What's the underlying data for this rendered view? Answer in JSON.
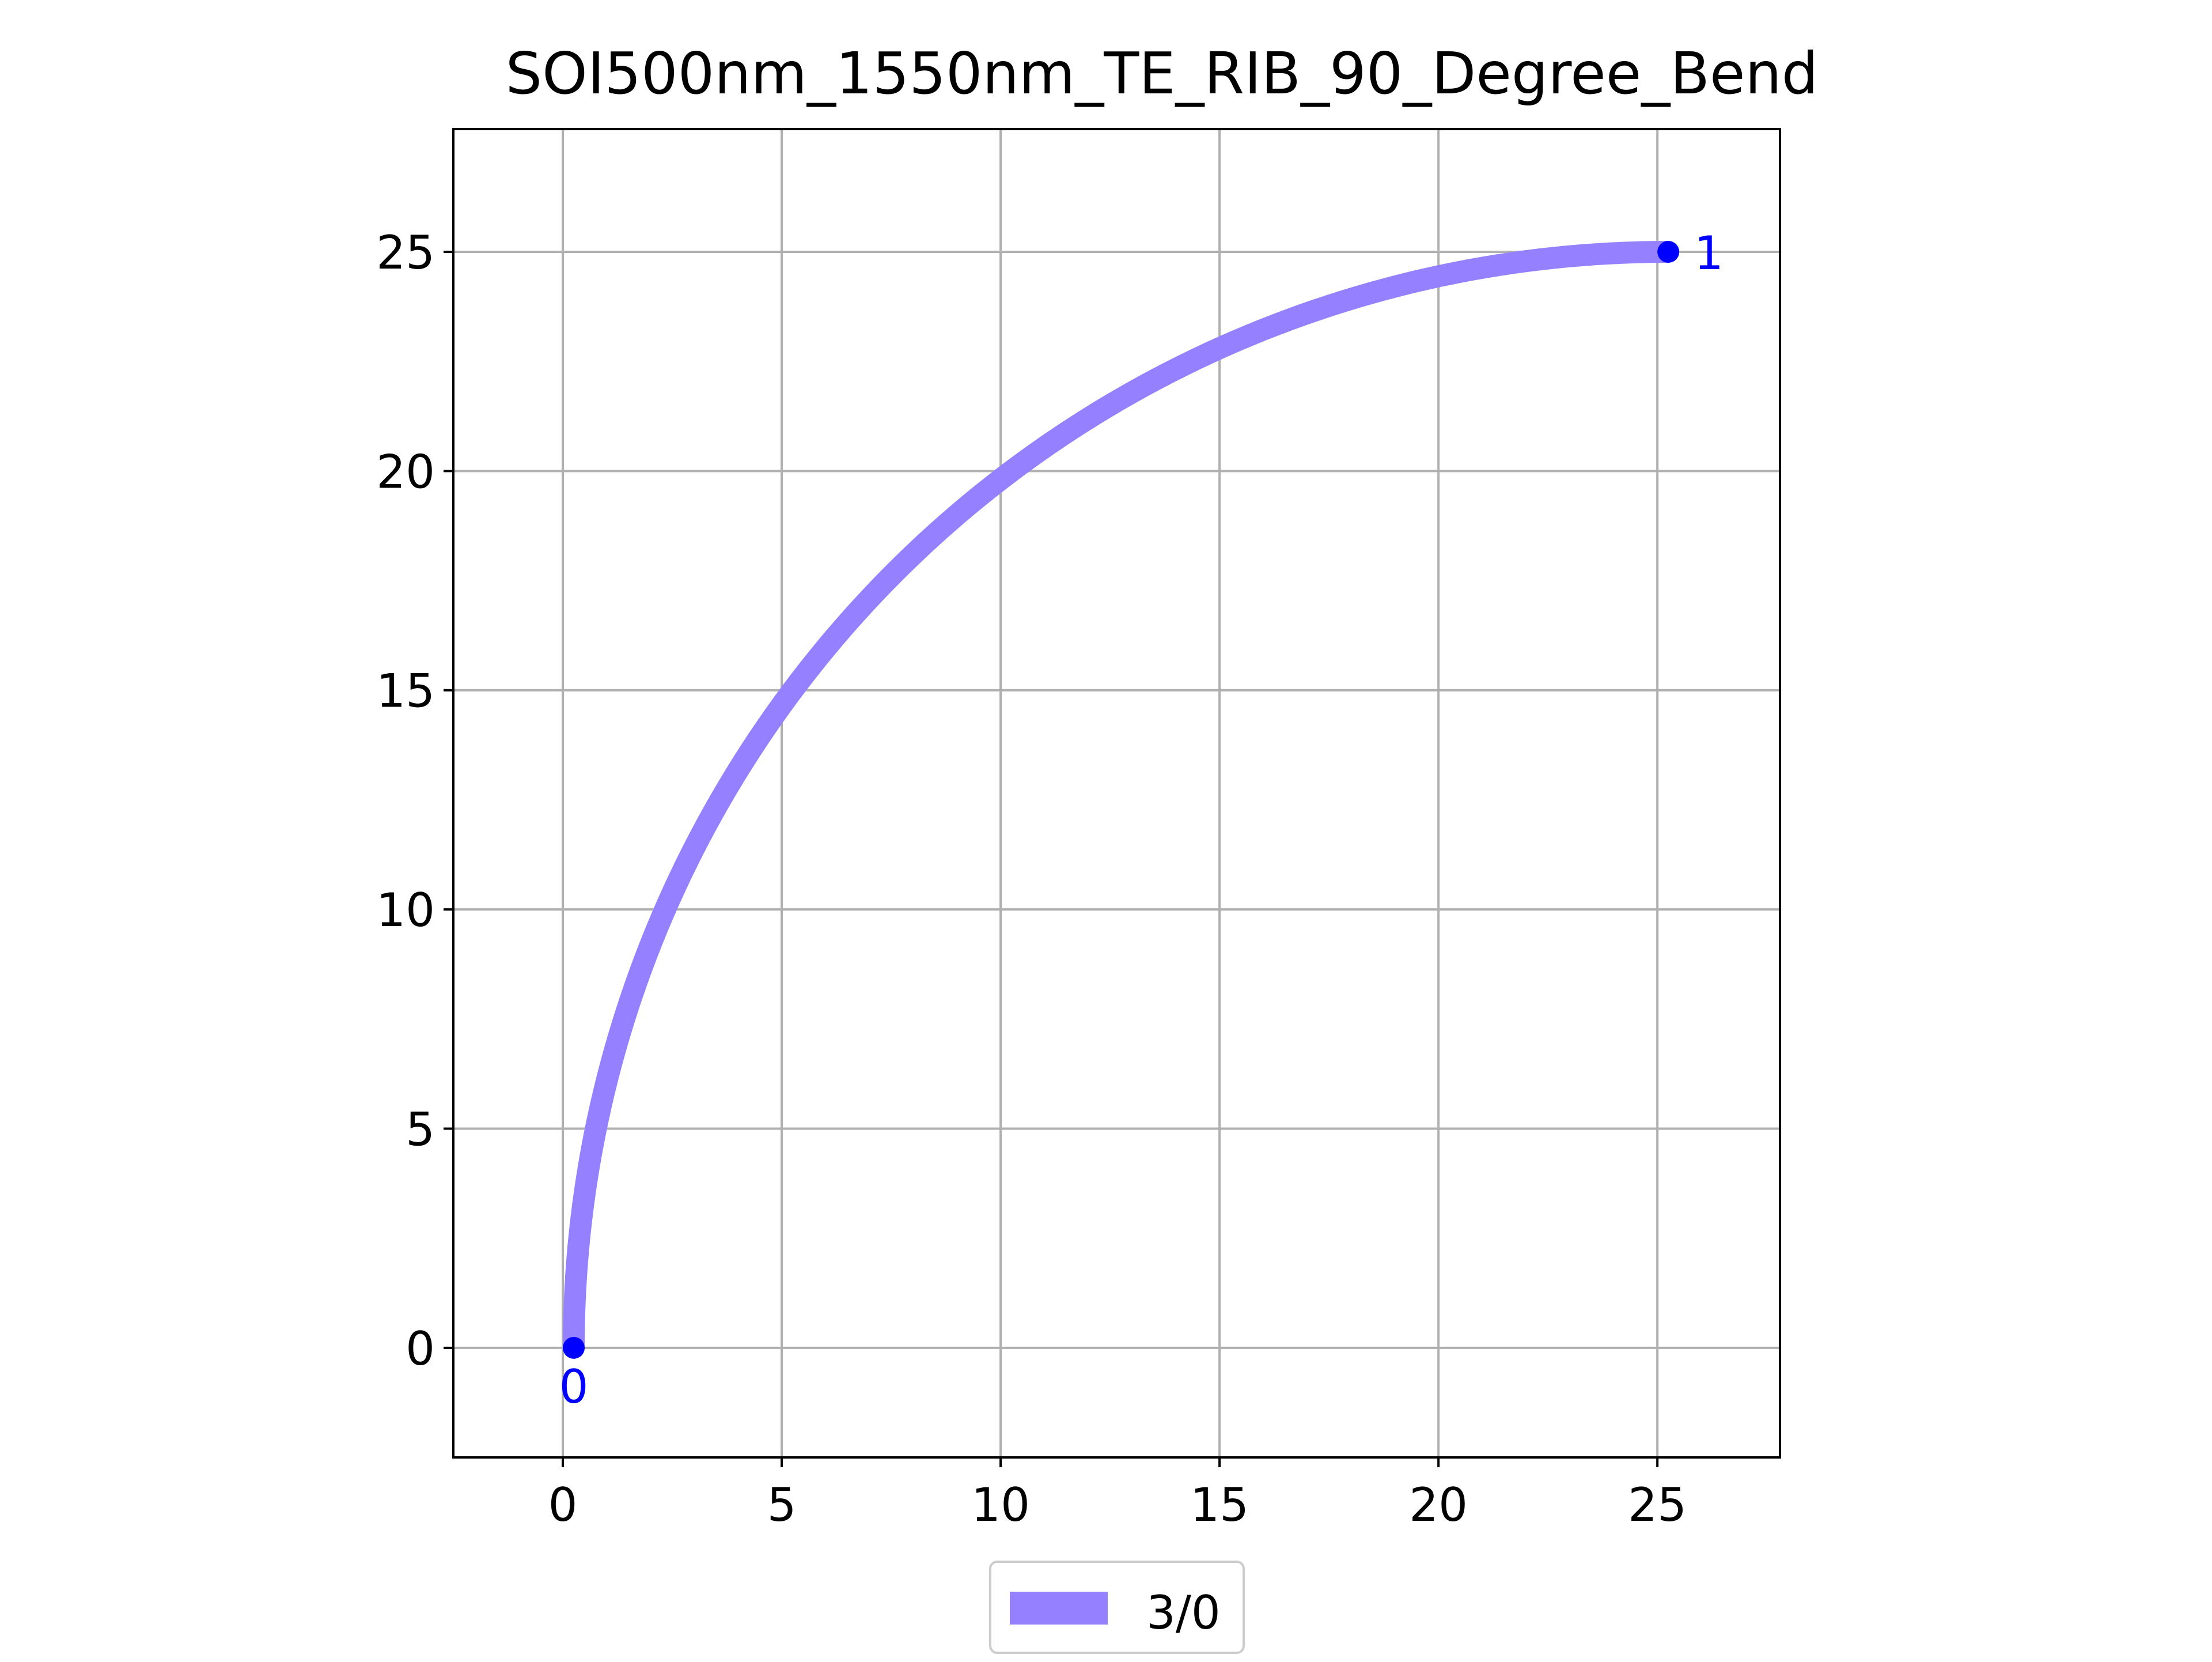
{
  "chart_data": {
    "type": "line",
    "title": "SOI500nm_1550nm_TE_RIB_90_Degree_Bend",
    "xlabel": "",
    "ylabel": "",
    "xlim": [
      -2.5,
      27.8
    ],
    "ylim": [
      -2.5,
      27.8
    ],
    "xticks": [
      0,
      5,
      10,
      15,
      20,
      25
    ],
    "yticks": [
      0,
      5,
      10,
      15,
      20,
      25
    ],
    "xtick_labels": [
      "0",
      "5",
      "10",
      "15",
      "20",
      "25"
    ],
    "ytick_labels": [
      "0",
      "5",
      "10",
      "15",
      "20",
      "25"
    ],
    "grid": true,
    "legend_position": "bottom-center",
    "series": [
      {
        "name": "3/0",
        "color": "#9580ff",
        "shape": "quarter-circle-arc",
        "center": [
          25.25,
          0
        ],
        "radius": 25,
        "start_point": [
          0.25,
          0
        ],
        "end_point": [
          25.25,
          25
        ],
        "width": 0.5
      }
    ],
    "ports": [
      {
        "label": "0",
        "x": 0.25,
        "y": 0,
        "color": "#0000ff",
        "label_placement": "below"
      },
      {
        "label": "1",
        "x": 25.25,
        "y": 25,
        "color": "#0000ff",
        "label_placement": "right"
      }
    ]
  }
}
